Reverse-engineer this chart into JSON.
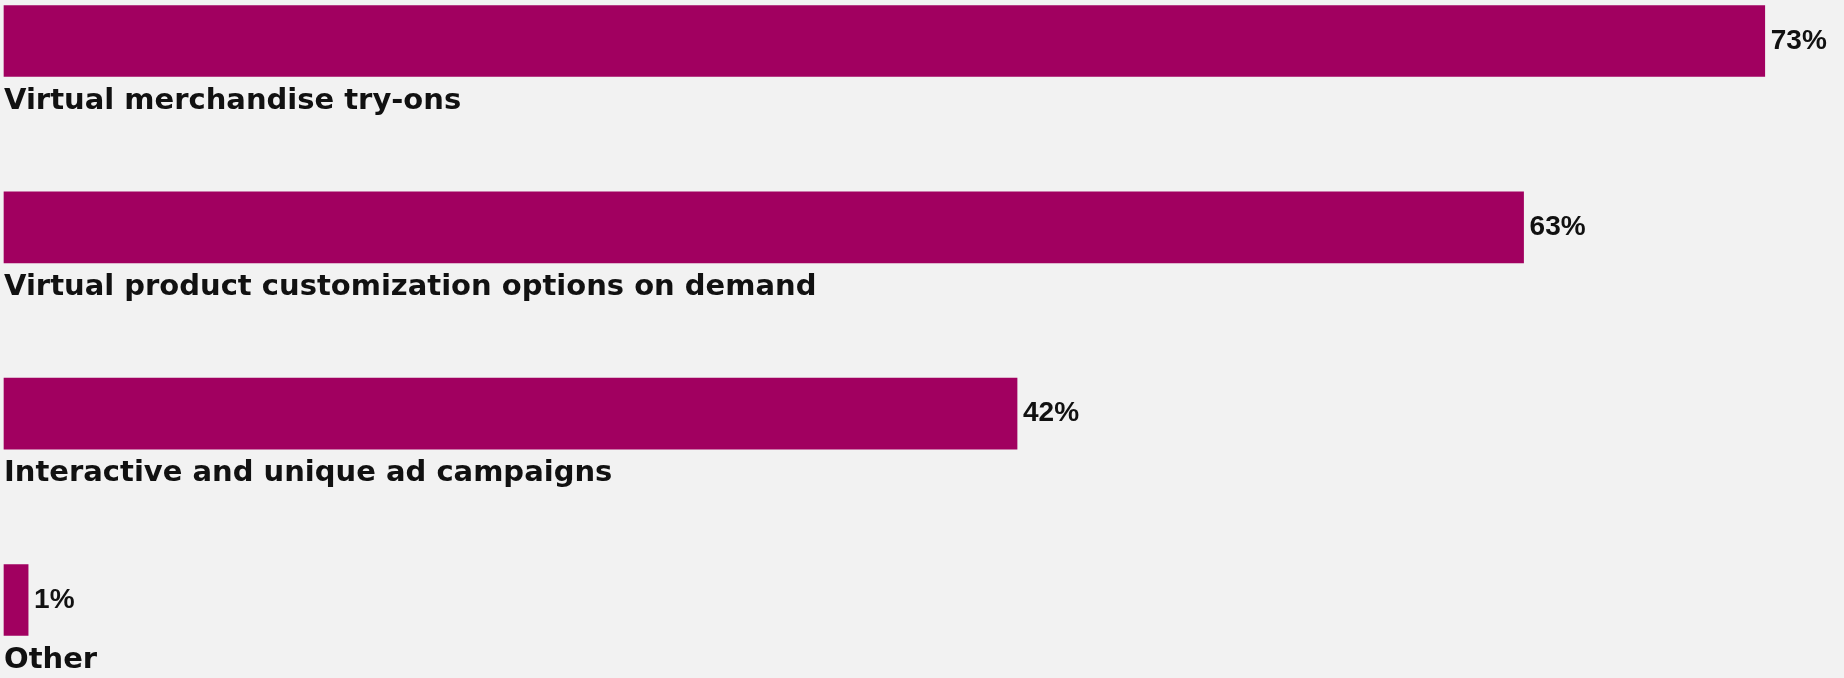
{
  "chart_data": {
    "type": "bar",
    "orientation": "horizontal",
    "categories": [
      "Virtual merchandise try-ons",
      "Virtual product customization options on demand",
      "Interactive and unique ad campaigns",
      "Other"
    ],
    "values": [
      73,
      63,
      42,
      1
    ],
    "color": "#a10060",
    "data_labels": true,
    "value_labels": [
      "73%",
      "63%",
      "42%",
      "1%"
    ],
    "legend": false
  }
}
